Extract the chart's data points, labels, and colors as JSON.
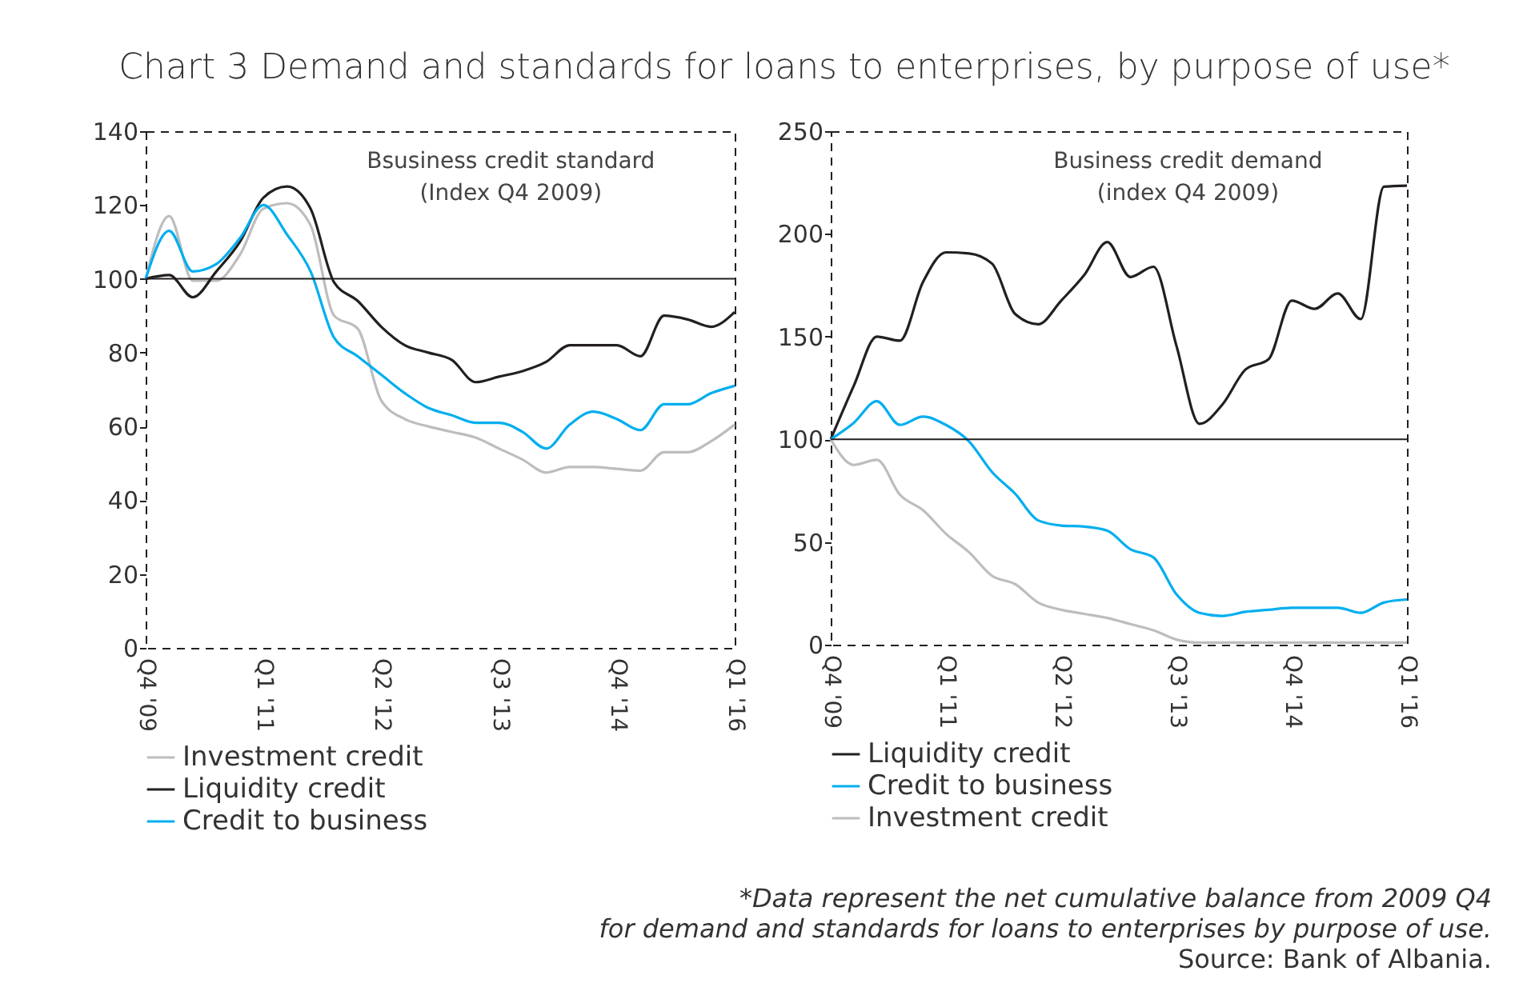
{
  "chart_data": [
    {
      "type": "line",
      "title": "Chart 3 Demand and standards for loans to enterprises, by purpose of use*",
      "subtitle": "Bsusiness credit standard\n(Index Q4 2009)",
      "categories": [
        "Q4 '09",
        null,
        null,
        null,
        null,
        "Q1 '11",
        null,
        null,
        null,
        null,
        "Q2 '12",
        null,
        null,
        null,
        null,
        "Q3 '13",
        null,
        null,
        null,
        null,
        "Q4 '14",
        null,
        null,
        null,
        null,
        "Q1 '16"
      ],
      "series": [
        {
          "name": "Investment credit",
          "color": "#bdbdbd",
          "values": [
            100,
            117,
            99.5,
            99.5,
            106.5,
            119,
            120.5,
            114.5,
            90,
            86.5,
            67,
            62,
            60,
            58.5,
            57,
            54,
            51,
            47.5,
            49,
            49,
            48.5,
            48,
            53,
            53,
            56,
            60.5
          ]
        },
        {
          "name": "Liquidity credit",
          "color": "#231f20",
          "values": [
            100,
            101,
            95,
            102,
            110,
            122,
            125,
            119,
            99,
            94,
            87,
            82,
            80,
            78,
            72,
            73.5,
            75,
            77.5,
            82,
            82,
            82,
            79,
            90,
            89,
            87,
            91
          ]
        },
        {
          "name": "Credit to business",
          "color": "#00aeef",
          "values": [
            100,
            113,
            102,
            104,
            111,
            120,
            112,
            102,
            84,
            79,
            74,
            69,
            65,
            63,
            61,
            61,
            58.5,
            54,
            60.5,
            64,
            62,
            59,
            66,
            66,
            69,
            71
          ]
        }
      ],
      "ylim": [
        0,
        140
      ],
      "yticks": [
        0,
        20,
        40,
        60,
        80,
        100,
        120,
        140
      ],
      "ref_lines": [
        {
          "axis": "y",
          "value": 100,
          "color": "#231f20"
        }
      ],
      "legend": "bottom",
      "grid": false
    },
    {
      "type": "line",
      "subtitle": "Business credit demand\n(index Q4 2009)",
      "categories": [
        "Q4 '09",
        null,
        null,
        null,
        null,
        "Q1 '11",
        null,
        null,
        null,
        null,
        "Q2 '12",
        null,
        null,
        null,
        null,
        "Q3 '13",
        null,
        null,
        null,
        null,
        "Q4 '14",
        null,
        null,
        null,
        null,
        "Q1 '16"
      ],
      "series": [
        {
          "name": "Liquidity credit",
          "color": "#231f20",
          "values": [
            100,
            126,
            150,
            148,
            176.5,
            191,
            190.5,
            185.5,
            161,
            156,
            167.5,
            180,
            196,
            179,
            184,
            145.5,
            107.5,
            117,
            134,
            139,
            167.5,
            163.5,
            171,
            158.5,
            223,
            223.5
          ]
        },
        {
          "name": "Credit to business",
          "color": "#00aeef",
          "values": [
            100,
            108,
            118.5,
            107,
            111,
            107,
            99,
            84,
            73.5,
            60.5,
            58,
            57.5,
            55.5,
            46.5,
            42.5,
            24.5,
            15.5,
            14,
            16,
            17,
            18,
            18,
            18,
            15.5,
            20.5,
            22
          ]
        },
        {
          "name": "Investment credit",
          "color": "#bdbdbd",
          "values": [
            100,
            87.5,
            90,
            73,
            65.5,
            54,
            45,
            33.5,
            29.5,
            20.5,
            17,
            15,
            13,
            10,
            7,
            2.5,
            1,
            1,
            1,
            1,
            1,
            1,
            1,
            1,
            1,
            1
          ]
        }
      ],
      "ylim": [
        0,
        250
      ],
      "yticks": [
        0,
        50,
        100,
        150,
        200,
        250
      ],
      "ref_lines": [
        {
          "axis": "y",
          "value": 100,
          "color": "#231f20"
        }
      ],
      "legend": "bottom",
      "grid": false,
      "annotations": [
        "*Data represent the net cumulative balance from 2009 Q4",
        "for demand and standards for loans to enterprises by purpose of use.",
        "Source: Bank of Albania."
      ]
    }
  ]
}
